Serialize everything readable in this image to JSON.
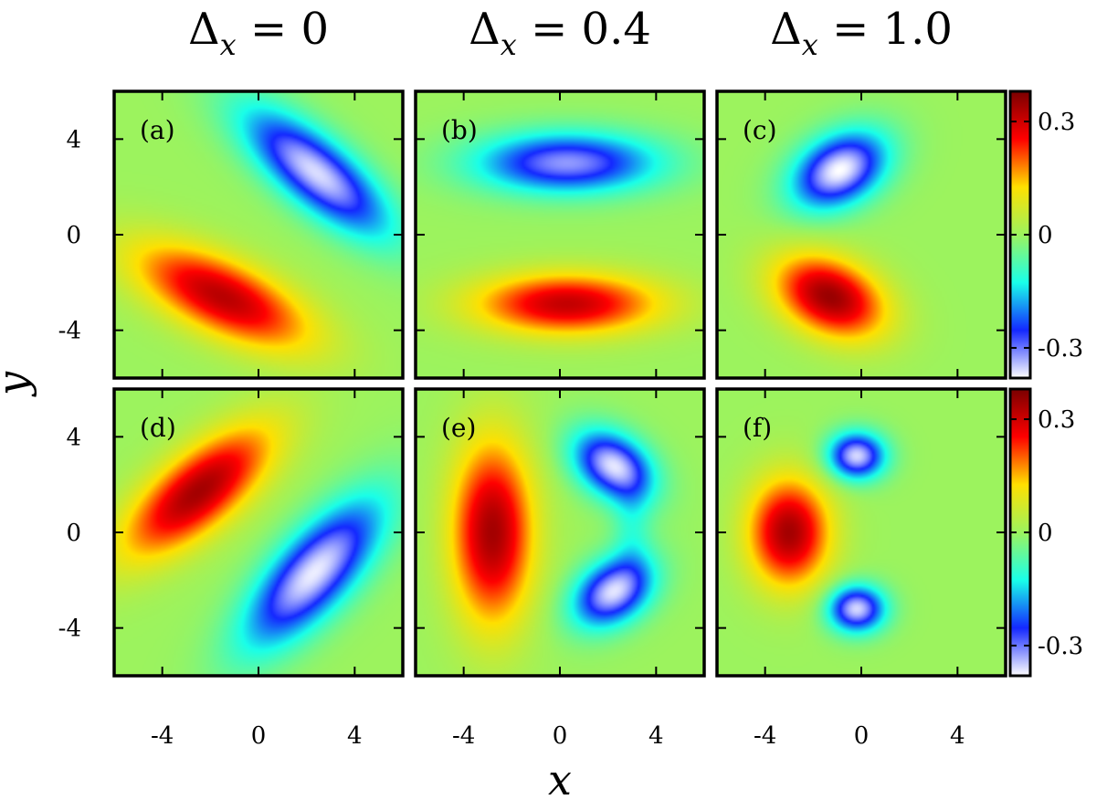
{
  "chart_data": {
    "type": "heatmap",
    "column_titles": [
      {
        "sym": "Δ",
        "sub": "x",
        "rest": " = 0"
      },
      {
        "sym": "Δ",
        "sub": "x",
        "rest": " = 0.4"
      },
      {
        "sym": "Δ",
        "sub": "x",
        "rest": " = 1.0"
      }
    ],
    "xlabel": "x",
    "ylabel": "y",
    "xlim": [
      -6,
      6
    ],
    "ylim": [
      -6,
      6
    ],
    "xticks": [
      {
        "value": -4,
        "label": "-4"
      },
      {
        "value": 0,
        "label": "0"
      },
      {
        "value": 4,
        "label": "4"
      }
    ],
    "yticks": [
      {
        "value": 4,
        "label": "4"
      },
      {
        "value": 0,
        "label": "0"
      },
      {
        "value": -4,
        "label": "-4"
      }
    ],
    "colorbar": {
      "min": -0.38,
      "max": 0.38,
      "ticks": [
        {
          "value": 0.3,
          "label": "0.3"
        },
        {
          "value": 0,
          "label": "0"
        },
        {
          "value": -0.3,
          "label": "-0.3"
        }
      ],
      "stops": [
        "#ffffff",
        "#1428ff",
        "#19ffe9",
        "#9cf35e",
        "#ffe000",
        "#ff0000",
        "#7a0000"
      ]
    },
    "panels": [
      {
        "label": "(a)",
        "row": 0,
        "col": 0,
        "lobes": [
          {
            "x": 2.4,
            "y": 2.6,
            "sx": 2.7,
            "sy": 1.0,
            "angle": -40,
            "amp": -0.36
          },
          {
            "x": -1.5,
            "y": -2.6,
            "sx": 2.8,
            "sy": 1.1,
            "angle": -25,
            "amp": 0.32
          }
        ]
      },
      {
        "label": "(b)",
        "row": 0,
        "col": 1,
        "lobes": [
          {
            "x": 0.3,
            "y": 3.0,
            "sx": 2.7,
            "sy": 0.9,
            "angle": 0,
            "amp": -0.32
          },
          {
            "x": 0.3,
            "y": -2.9,
            "sx": 2.7,
            "sy": 0.9,
            "angle": 0,
            "amp": 0.31
          }
        ]
      },
      {
        "label": "(c)",
        "row": 0,
        "col": 2,
        "lobes": [
          {
            "x": -0.9,
            "y": 2.7,
            "sx": 1.5,
            "sy": 1.0,
            "angle": 30,
            "amp": -0.38
          },
          {
            "x": -1.3,
            "y": -2.6,
            "sx": 1.7,
            "sy": 1.1,
            "angle": -25,
            "amp": 0.35
          }
        ]
      },
      {
        "label": "(d)",
        "row": 1,
        "col": 0,
        "lobes": [
          {
            "x": -2.5,
            "y": 1.7,
            "sx": 2.7,
            "sy": 1.1,
            "angle": 40,
            "amp": 0.34
          },
          {
            "x": 2.3,
            "y": -1.7,
            "sx": 2.8,
            "sy": 1.1,
            "angle": 48,
            "amp": -0.37
          }
        ]
      },
      {
        "label": "(e)",
        "row": 1,
        "col": 1,
        "lobes": [
          {
            "x": -2.8,
            "y": 0.0,
            "sx": 1.2,
            "sy": 2.7,
            "angle": 0,
            "amp": 0.34
          },
          {
            "x": 2.2,
            "y": 2.8,
            "sx": 1.3,
            "sy": 0.9,
            "angle": -35,
            "amp": -0.36
          },
          {
            "x": 2.2,
            "y": -2.5,
            "sx": 1.3,
            "sy": 0.9,
            "angle": 35,
            "amp": -0.36
          },
          {
            "x": 3.0,
            "y": 0.2,
            "sx": 0.6,
            "sy": 1.4,
            "angle": 0,
            "amp": -0.08
          }
        ]
      },
      {
        "label": "(f)",
        "row": 1,
        "col": 2,
        "lobes": [
          {
            "x": -3.0,
            "y": 0.0,
            "sx": 1.2,
            "sy": 1.6,
            "angle": 0,
            "amp": 0.34
          },
          {
            "x": -0.2,
            "y": 3.2,
            "sx": 0.85,
            "sy": 0.7,
            "angle": 0,
            "amp": -0.36
          },
          {
            "x": -0.2,
            "y": -3.2,
            "sx": 0.85,
            "sy": 0.7,
            "angle": 0,
            "amp": -0.36
          }
        ]
      }
    ]
  }
}
